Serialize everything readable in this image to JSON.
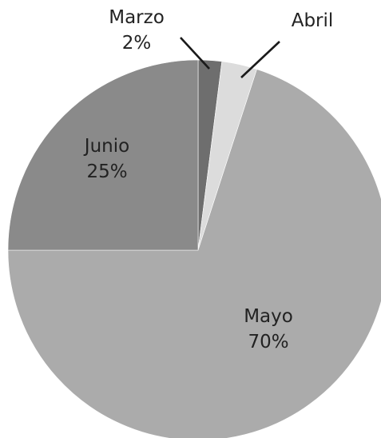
{
  "chart_data": {
    "type": "pie",
    "title": "",
    "slices": [
      {
        "category": "Marzo",
        "value": 2,
        "value_label": "2%",
        "color": "#6e6e6e"
      },
      {
        "category": "Abril",
        "value": 3,
        "value_label": "",
        "color": "#dcdcdc"
      },
      {
        "category": "Mayo",
        "value": 70,
        "value_label": "70%",
        "color": "#ababab"
      },
      {
        "category": "Junio",
        "value": 25,
        "value_label": "25%",
        "color": "#8a8a8a"
      }
    ],
    "start_angle": "12 o'clock",
    "direction": "clockwise",
    "legend": "none",
    "label_color": "#222222"
  }
}
